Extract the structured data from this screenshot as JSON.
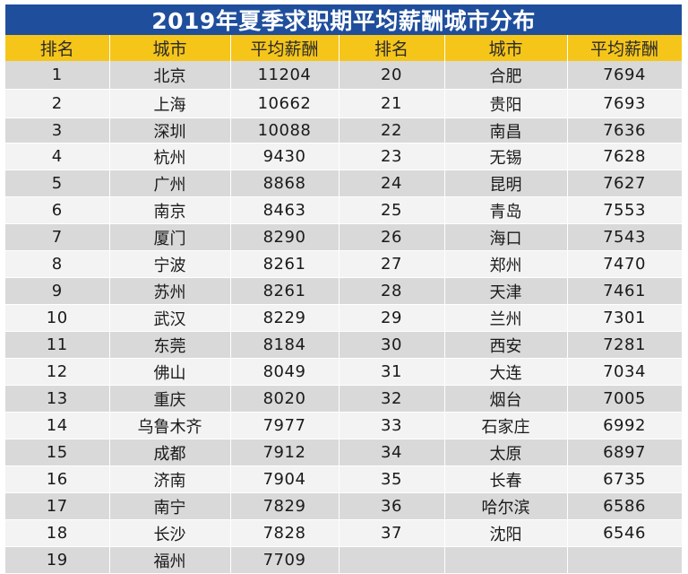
{
  "title": "2019年夏季求职期平均薪酬城市分布",
  "headers": [
    "排名",
    "城市",
    "平均薪酬",
    "排名",
    "城市",
    "平均薪酬"
  ],
  "rows": [
    {
      "left": {
        "rank": "1",
        "city": "北京",
        "salary": "11204"
      },
      "right": {
        "rank": "20",
        "city": "合肥",
        "salary": "7694"
      }
    },
    {
      "left": {
        "rank": "2",
        "city": "上海",
        "salary": "10662"
      },
      "right": {
        "rank": "21",
        "city": "贵阳",
        "salary": "7693"
      }
    },
    {
      "left": {
        "rank": "3",
        "city": "深圳",
        "salary": "10088"
      },
      "right": {
        "rank": "22",
        "city": "南昌",
        "salary": "7636"
      }
    },
    {
      "left": {
        "rank": "4",
        "city": "杭州",
        "salary": "9430"
      },
      "right": {
        "rank": "23",
        "city": "无锡",
        "salary": "7628"
      }
    },
    {
      "left": {
        "rank": "5",
        "city": "广州",
        "salary": "8868"
      },
      "right": {
        "rank": "24",
        "city": "昆明",
        "salary": "7627"
      }
    },
    {
      "left": {
        "rank": "6",
        "city": "南京",
        "salary": "8463"
      },
      "right": {
        "rank": "25",
        "city": "青岛",
        "salary": "7553"
      }
    },
    {
      "left": {
        "rank": "7",
        "city": "厦门",
        "salary": "8290"
      },
      "right": {
        "rank": "26",
        "city": "海口",
        "salary": "7543"
      }
    },
    {
      "left": {
        "rank": "8",
        "city": "宁波",
        "salary": "8261"
      },
      "right": {
        "rank": "27",
        "city": "郑州",
        "salary": "7470"
      }
    },
    {
      "left": {
        "rank": "9",
        "city": "苏州",
        "salary": "8261"
      },
      "right": {
        "rank": "28",
        "city": "天津",
        "salary": "7461"
      }
    },
    {
      "left": {
        "rank": "10",
        "city": "武汉",
        "salary": "8229"
      },
      "right": {
        "rank": "29",
        "city": "兰州",
        "salary": "7301"
      }
    },
    {
      "left": {
        "rank": "11",
        "city": "东莞",
        "salary": "8184"
      },
      "right": {
        "rank": "30",
        "city": "西安",
        "salary": "7281"
      }
    },
    {
      "left": {
        "rank": "12",
        "city": "佛山",
        "salary": "8049"
      },
      "right": {
        "rank": "31",
        "city": "大连",
        "salary": "7034"
      }
    },
    {
      "left": {
        "rank": "13",
        "city": "重庆",
        "salary": "8020"
      },
      "right": {
        "rank": "32",
        "city": "烟台",
        "salary": "7005"
      }
    },
    {
      "left": {
        "rank": "14",
        "city": "乌鲁木齐",
        "salary": "7977"
      },
      "right": {
        "rank": "33",
        "city": "石家庄",
        "salary": "6992"
      }
    },
    {
      "left": {
        "rank": "15",
        "city": "成都",
        "salary": "7912"
      },
      "right": {
        "rank": "34",
        "city": "太原",
        "salary": "6897"
      }
    },
    {
      "left": {
        "rank": "16",
        "city": "济南",
        "salary": "7904"
      },
      "right": {
        "rank": "35",
        "city": "长春",
        "salary": "6735"
      }
    },
    {
      "left": {
        "rank": "17",
        "city": "南宁",
        "salary": "7829"
      },
      "right": {
        "rank": "36",
        "city": "哈尔滨",
        "salary": "6586"
      }
    },
    {
      "left": {
        "rank": "18",
        "city": "长沙",
        "salary": "7828"
      },
      "right": {
        "rank": "37",
        "city": "沈阳",
        "salary": "6546"
      }
    },
    {
      "left": {
        "rank": "19",
        "city": "福州",
        "salary": "7709"
      },
      "right": {
        "rank": "",
        "city": "",
        "salary": ""
      }
    }
  ],
  "colors": {
    "title_bg": "#1f4e9c",
    "header_bg": "#f5c51a",
    "row_dark": "#d9d9d9",
    "row_light": "#f3f3f3"
  }
}
